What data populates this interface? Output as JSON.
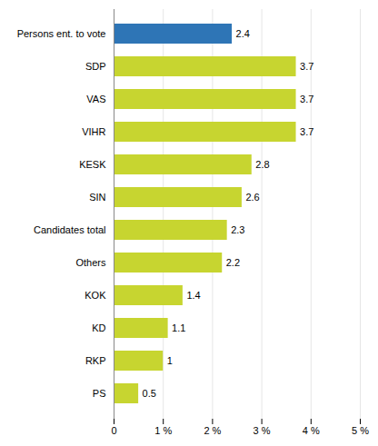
{
  "chart_data": {
    "type": "bar",
    "orientation": "horizontal",
    "categories": [
      "Persons ent. to vote",
      "SDP",
      "VAS",
      "VIHR",
      "KESK",
      "SIN",
      "Candidates total",
      "Others",
      "KOK",
      "KD",
      "RKP",
      "PS"
    ],
    "values": [
      2.4,
      3.7,
      3.7,
      3.7,
      2.8,
      2.6,
      2.3,
      2.2,
      1.4,
      1.1,
      1.0,
      0.5
    ],
    "colors": [
      "#2e75b6",
      "#c7d530",
      "#c7d530",
      "#c7d530",
      "#c7d530",
      "#c7d530",
      "#c7d530",
      "#c7d530",
      "#c7d530",
      "#c7d530",
      "#c7d530",
      "#c7d530"
    ],
    "xlim": [
      0,
      5
    ],
    "xticks": [
      0,
      {
        "value": 1,
        "label": "1 %"
      },
      {
        "value": 2,
        "label": "2 %"
      },
      {
        "value": 3,
        "label": "3 %"
      },
      {
        "value": 4,
        "label": "4 %"
      },
      {
        "value": 5,
        "label": "5 %"
      }
    ],
    "grid": true,
    "data_labels": true
  }
}
